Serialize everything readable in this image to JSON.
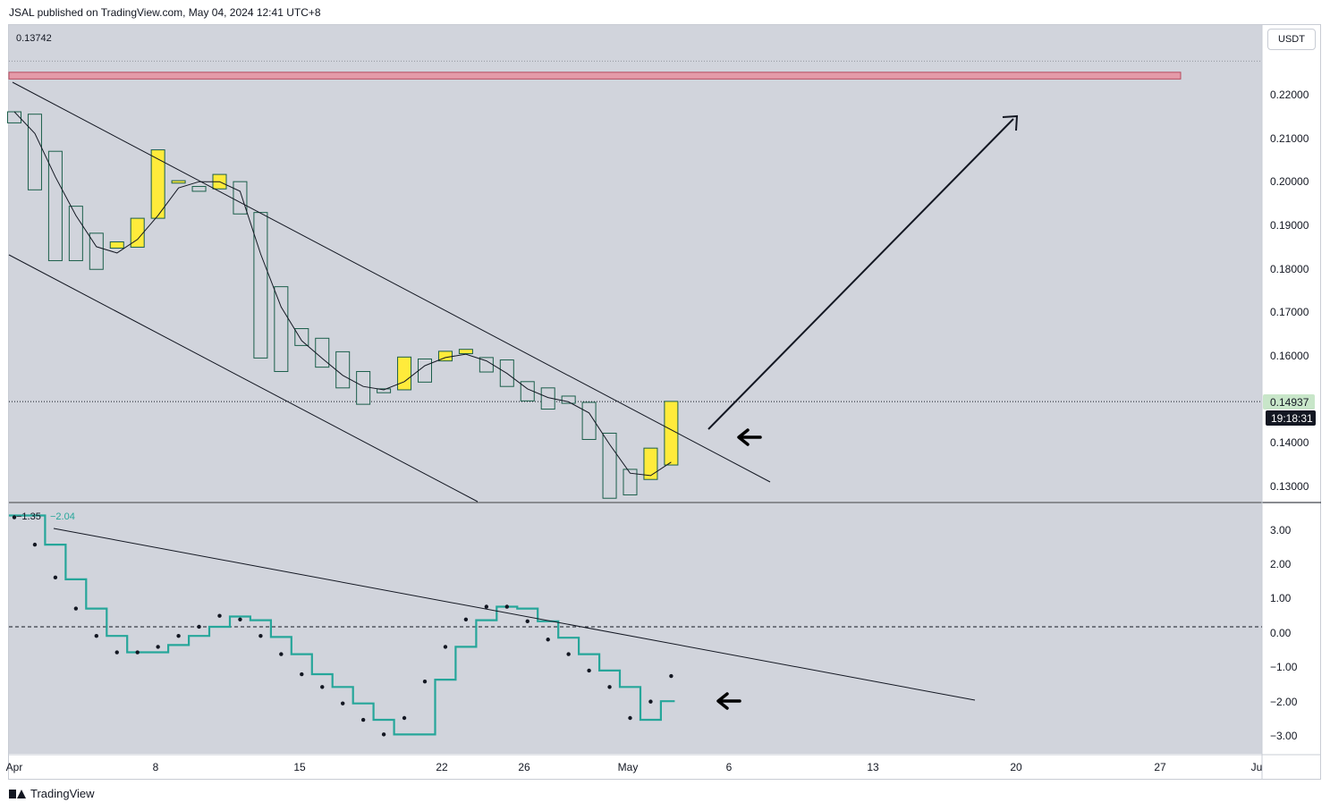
{
  "header": {
    "published_by": "JSAL published on TradingView.com, May 04, 2024 12:41 UTC+8"
  },
  "currency": "USDT",
  "last_price_label": "0.14937",
  "countdown_label": "19:18:31",
  "price_pane": {
    "top_left_value": "0.13742",
    "y_ticks": [
      "0.22000",
      "0.21000",
      "0.20000",
      "0.19000",
      "0.18000",
      "0.17000",
      "0.16000",
      "0.14000",
      "0.13000"
    ],
    "ylim": [
      0.1286,
      0.2275
    ]
  },
  "indicator_pane": {
    "legend_value_1": "−1.35",
    "legend_value_2": "−2.04",
    "y_ticks": [
      "3.00",
      "2.00",
      "1.00",
      "0.00",
      "−1.00",
      "−2.00",
      "−3.00"
    ],
    "ylim": [
      -3.48,
      3.38
    ]
  },
  "x_ticks": [
    "Apr",
    "8",
    "15",
    "22",
    "26",
    "May",
    "6",
    "13",
    "20",
    "27",
    "Ju"
  ],
  "footer": {
    "brand": "TradingView"
  },
  "colors": {
    "bull_fill": "#ffeb3b",
    "bear_fill": "#d1d4dc",
    "candle_border": "#1b5e4a",
    "pane_bg": "#d1d4dc",
    "resistance_zone": "#e49aa8",
    "step_line": "#26a69a",
    "price_label_bg": "#c8e6c9",
    "countdown_bg": "#131722"
  },
  "chart_data": [
    {
      "type": "candlestick",
      "x": [
        "Apr 1",
        "Apr 2",
        "Apr 3",
        "Apr 4",
        "Apr 5",
        "Apr 6",
        "Apr 7",
        "Apr 8",
        "Apr 9",
        "Apr 10",
        "Apr 11",
        "Apr 12",
        "Apr 13",
        "Apr 14",
        "Apr 15",
        "Apr 16",
        "Apr 17",
        "Apr 18",
        "Apr 19",
        "Apr 20",
        "Apr 21",
        "Apr 22",
        "Apr 23",
        "Apr 24",
        "Apr 25",
        "Apr 26",
        "Apr 27",
        "Apr 28",
        "Apr 29",
        "Apr 30",
        "May 1",
        "May 2",
        "May 3"
      ],
      "open": [
        0.2095,
        0.209,
        0.2013,
        0.1899,
        0.1843,
        0.1812,
        0.1814,
        0.1874,
        0.1947,
        0.194,
        0.1935,
        0.195,
        0.1886,
        0.1732,
        0.1645,
        0.1625,
        0.1597,
        0.1556,
        0.152,
        0.1518,
        0.1582,
        0.1578,
        0.1593,
        0.1585,
        0.158,
        0.1535,
        0.1522,
        0.1505,
        0.1492,
        0.1428,
        0.1353,
        0.1332,
        0.1362
      ],
      "close": [
        0.2072,
        0.1933,
        0.1786,
        0.1786,
        0.1768,
        0.1825,
        0.1874,
        0.2016,
        0.1952,
        0.193,
        0.1965,
        0.1883,
        0.1584,
        0.1556,
        0.161,
        0.1565,
        0.1522,
        0.1488,
        0.1512,
        0.1586,
        0.1534,
        0.1598,
        0.1602,
        0.1555,
        0.1525,
        0.1495,
        0.1478,
        0.149,
        0.1415,
        0.1293,
        0.13,
        0.1397,
        0.1494
      ],
      "ma": [
        0.2095,
        0.205,
        0.196,
        0.188,
        0.1815,
        0.1802,
        0.183,
        0.188,
        0.1937,
        0.195,
        0.195,
        0.193,
        0.18,
        0.169,
        0.162,
        0.1583,
        0.1548,
        0.1525,
        0.1518,
        0.1535,
        0.1568,
        0.1585,
        0.1592,
        0.1578,
        0.1552,
        0.152,
        0.1502,
        0.1493,
        0.147,
        0.1405,
        0.1345,
        0.134,
        0.1368
      ]
    },
    {
      "type": "line",
      "name": "",
      "x": [
        "Apr 1",
        "Apr 2",
        "Apr 3",
        "Apr 4",
        "Apr 5",
        "Apr 6",
        "Apr 7",
        "Apr 8",
        "Apr 9",
        "Apr 10",
        "Apr 11",
        "Apr 12",
        "Apr 13",
        "Apr 14",
        "Apr 15",
        "Apr 16",
        "Apr 17",
        "Apr 18",
        "Apr 19",
        "Apr 20",
        "Apr 21",
        "Apr 22",
        "Apr 23",
        "Apr 24",
        "Apr 25",
        "Apr 26",
        "Apr 27",
        "Apr 28",
        "Apr 29",
        "Apr 30",
        "May 1",
        "May 2",
        "May 3"
      ],
      "step_values": [
        3.05,
        3.05,
        2.25,
        1.3,
        0.5,
        -0.25,
        -0.7,
        -0.7,
        -0.5,
        -0.25,
        0.0,
        0.28,
        0.18,
        -0.28,
        -0.75,
        -1.3,
        -1.65,
        -2.1,
        -2.55,
        -2.95,
        -2.95,
        -1.45,
        -0.55,
        0.18,
        0.55,
        0.5,
        0.15,
        -0.3,
        -0.75,
        -1.2,
        -1.65,
        -2.55,
        -2.04
      ],
      "dot_values": [
        3.0,
        2.25,
        1.35,
        0.5,
        -0.25,
        -0.7,
        -0.7,
        -0.55,
        -0.25,
        0.0,
        0.3,
        0.2,
        -0.25,
        -0.75,
        -1.3,
        -1.65,
        -2.1,
        -2.55,
        -2.95,
        -2.5,
        -1.5,
        -0.55,
        0.2,
        0.55,
        0.55,
        0.15,
        -0.35,
        -0.75,
        -1.2,
        -1.65,
        -2.5,
        -2.05,
        -1.35
      ],
      "zero_line": 0
    }
  ]
}
